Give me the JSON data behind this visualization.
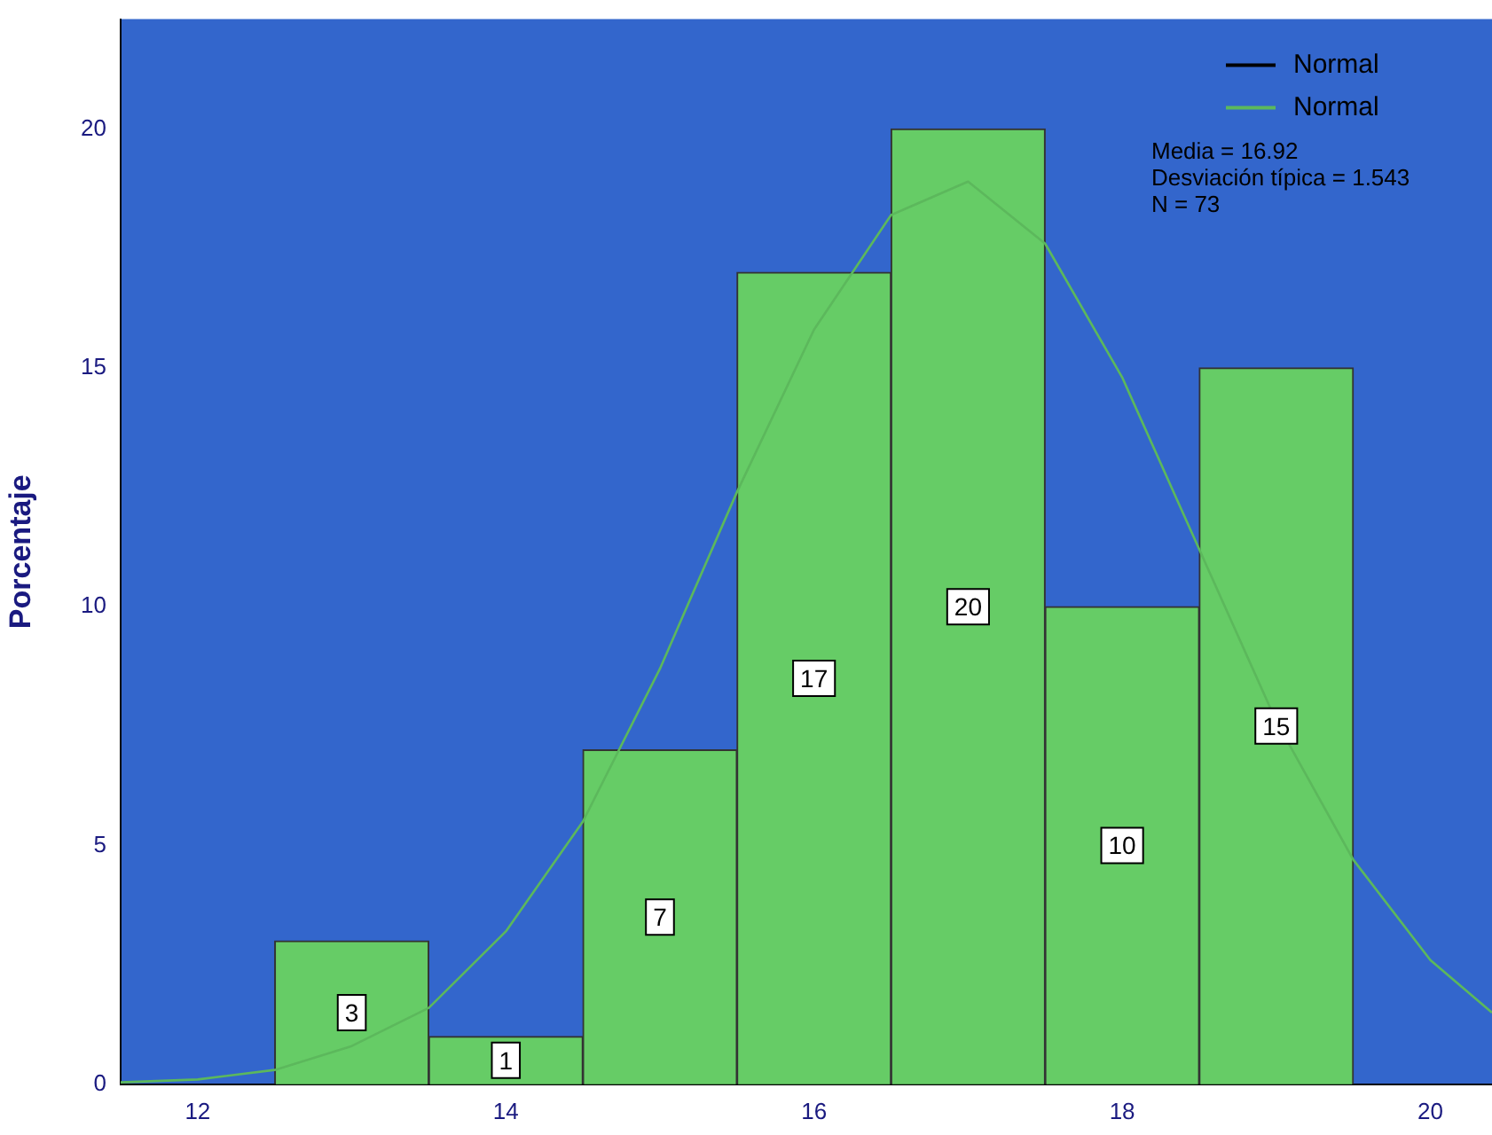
{
  "chart_data": {
    "type": "histogram",
    "ylabel": "Porcentaje",
    "bins": [
      12.5,
      13.5,
      14.5,
      15.5,
      16.5,
      17.5,
      18.5,
      19.5
    ],
    "values": [
      3,
      1,
      7,
      17,
      20,
      10,
      15
    ],
    "color": "#66cc66",
    "value_labels": [
      "3",
      "1",
      "7",
      "17",
      "20",
      "10",
      "15"
    ],
    "series": [
      {
        "name": "Normal",
        "type": "line",
        "color": "#000000"
      },
      {
        "name": "Normal",
        "type": "line",
        "color": "#5cb85c",
        "x": [
          11.5,
          12,
          12.5,
          13,
          13.5,
          14,
          14.5,
          15,
          15.5,
          16,
          16.5,
          17,
          17.5,
          18,
          18.5,
          19,
          19.5,
          20,
          20.4
        ],
        "values": [
          0.04,
          0.1,
          0.3,
          0.8,
          1.6,
          3.2,
          5.5,
          8.7,
          12.4,
          15.8,
          18.2,
          18.9,
          17.6,
          14.8,
          11.2,
          7.6,
          4.7,
          2.6,
          1.5
        ]
      }
    ],
    "annotations": [
      "Media = 16.92",
      "Desviación típica = 1.543",
      "N = 73"
    ],
    "xlim": [
      11.5,
      20.4
    ],
    "ylim": [
      0,
      22.3
    ],
    "xticks": [
      12,
      14,
      16,
      18,
      20
    ],
    "yticks": [
      0,
      5,
      10,
      15,
      20
    ],
    "grid": false,
    "legend": "top right"
  }
}
